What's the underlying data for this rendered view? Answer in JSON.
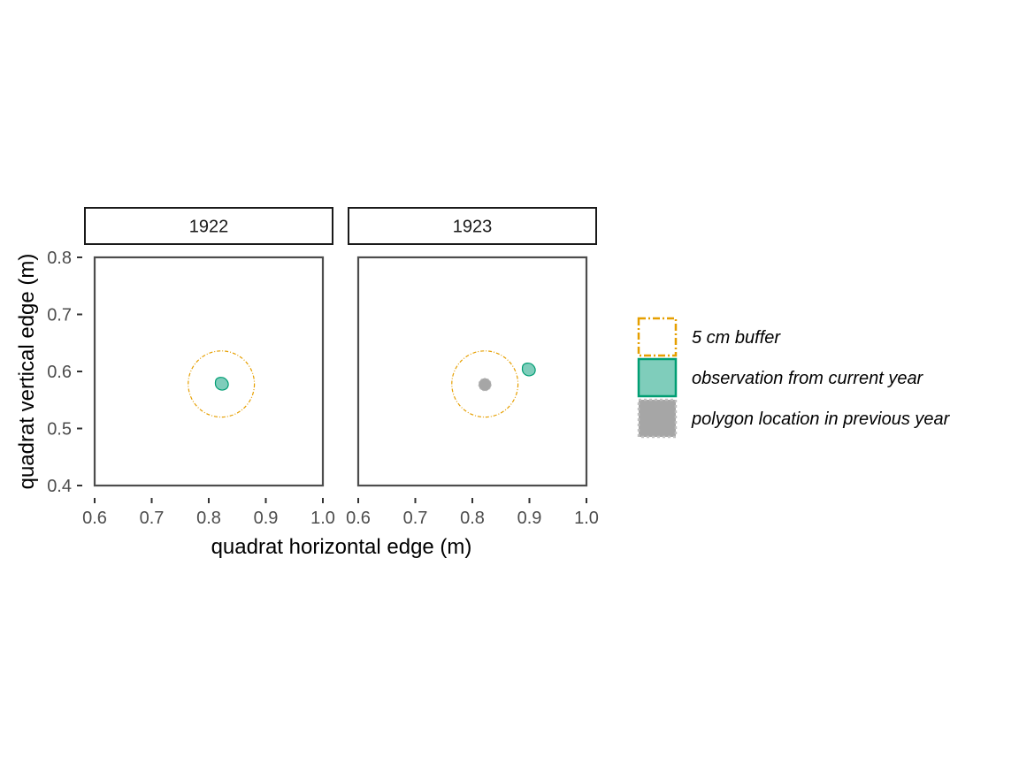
{
  "chart_data": {
    "type": "scatter",
    "xlabel": "quadrat horizontal edge (m)",
    "ylabel": "quadrat vertical edge (m)",
    "xlim": [
      0.6,
      1.0
    ],
    "ylim": [
      0.4,
      0.8
    ],
    "x_ticks": [
      "0.6",
      "0.7",
      "0.8",
      "0.9",
      "1.0"
    ],
    "y_ticks": [
      "0.4",
      "0.5",
      "0.6",
      "0.7",
      "0.8"
    ],
    "facets": [
      {
        "label": "1922",
        "buffer": {
          "x": 0.822,
          "y": 0.578,
          "r": 0.058
        },
        "current": [
          {
            "x": 0.822,
            "y": 0.578,
            "r": 0.012
          }
        ],
        "previous": []
      },
      {
        "label": "1923",
        "buffer": {
          "x": 0.822,
          "y": 0.578,
          "r": 0.058
        },
        "current": [
          {
            "x": 0.898,
            "y": 0.603,
            "r": 0.012
          }
        ],
        "previous": [
          {
            "x": 0.822,
            "y": 0.577,
            "r": 0.011
          }
        ]
      }
    ],
    "legend": {
      "position": "right",
      "items": [
        {
          "label": "5 cm buffer",
          "kind": "buffer"
        },
        {
          "label": "observation from current year",
          "kind": "current"
        },
        {
          "label": "polygon location in previous year",
          "kind": "previous"
        }
      ]
    },
    "colors": {
      "buffer_stroke": "#E69F00",
      "current_fill": "#7FCDBB",
      "current_stroke": "#009E73",
      "previous_fill": "#A6A6A6",
      "previous_stroke": "#BFBFBF",
      "panel_border": "#4d4d4d"
    },
    "grid": false
  }
}
